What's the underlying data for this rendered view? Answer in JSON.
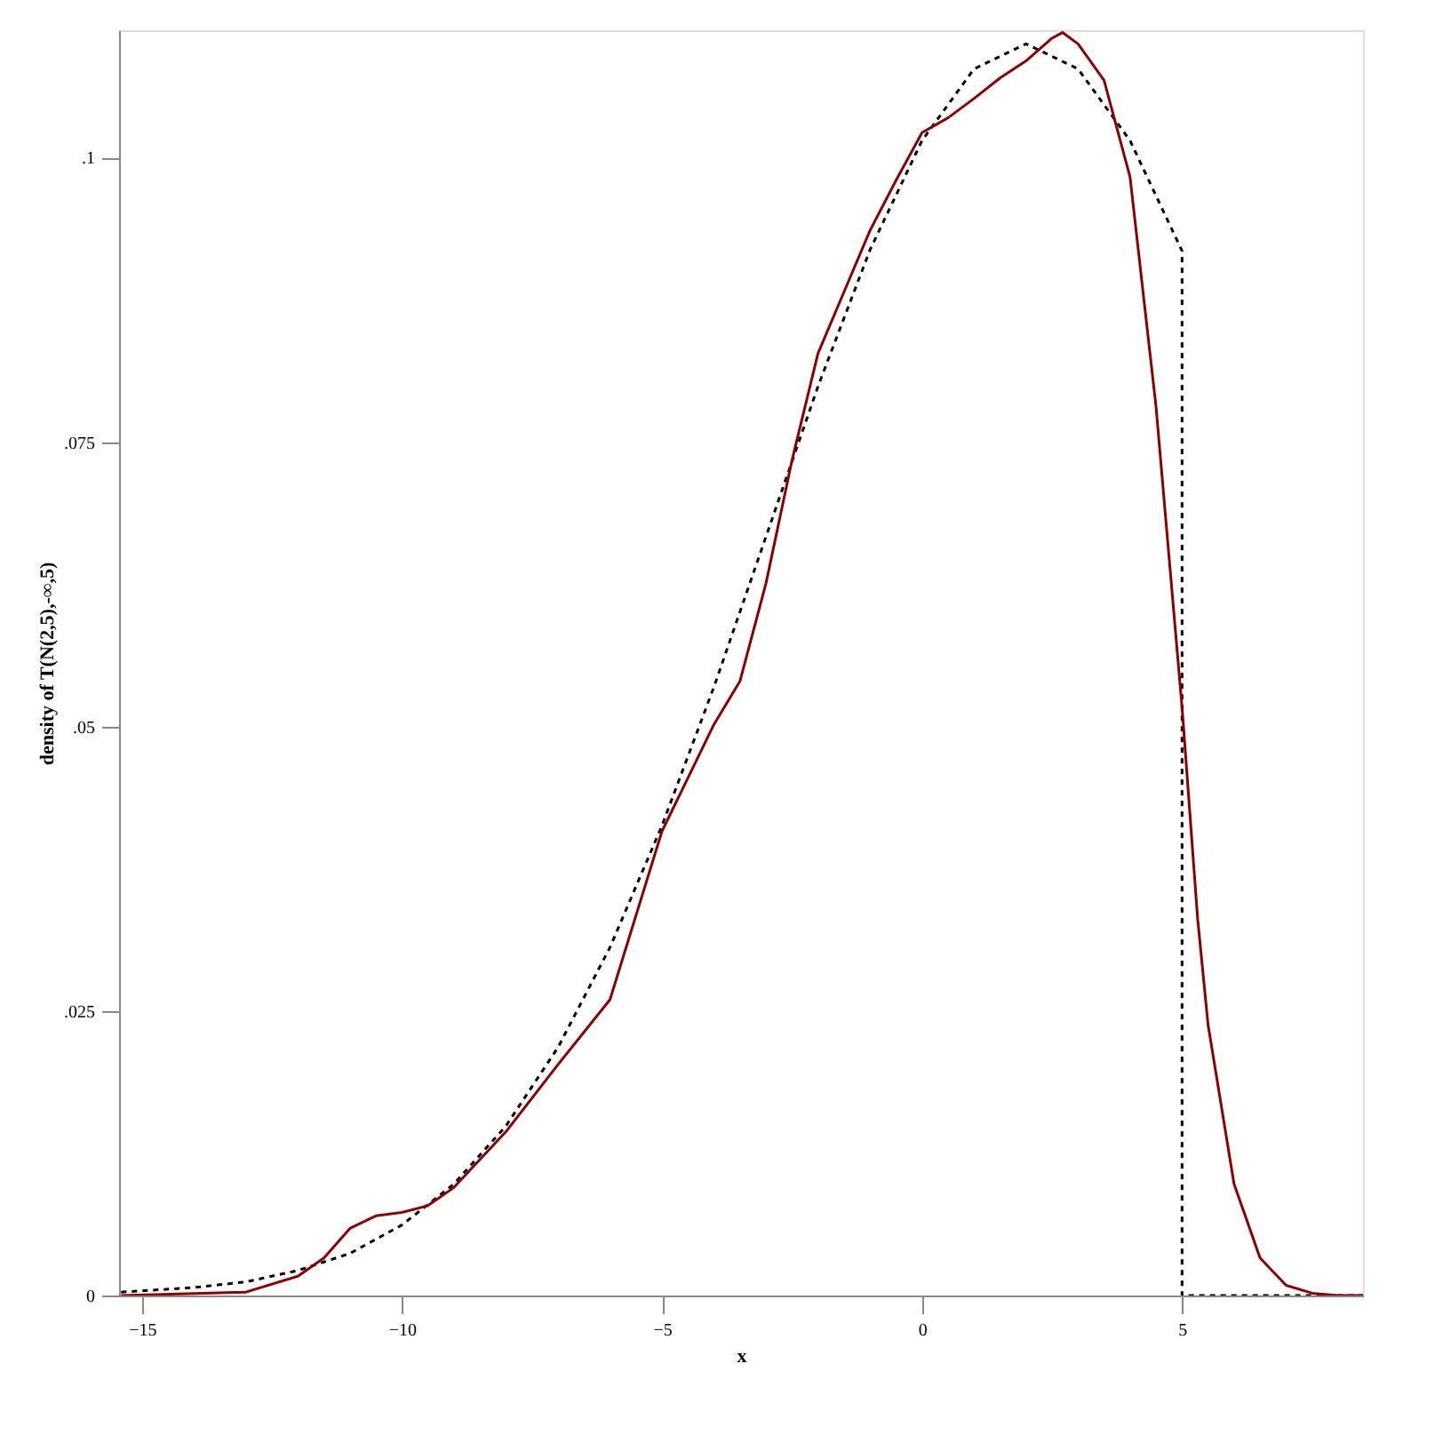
{
  "chart_data": {
    "type": "line",
    "xlabel": "x",
    "ylabel": "density of T(N(2,5),-∞,5)",
    "xlim": [
      -15.44,
      8.48
    ],
    "xticks": [
      -15,
      -10,
      -5,
      0,
      5
    ],
    "ylim": [
      0,
      0.1112
    ],
    "yticks": [
      {
        "value": 0,
        "label": "0"
      },
      {
        "value": 0.025,
        "label": ".025"
      },
      {
        "value": 0.05,
        "label": ".05"
      },
      {
        "value": 0.075,
        "label": ".075"
      },
      {
        "value": 0.1,
        "label": ".1"
      }
    ],
    "grid": false,
    "series": [
      {
        "color": "#000000",
        "line_style": "dashed",
        "x": [
          -15.4,
          -14,
          -13,
          -12,
          -11,
          -10,
          -9,
          -8,
          -7,
          -6,
          -5,
          -4,
          -3,
          -2,
          -1,
          0,
          1,
          2,
          3,
          4,
          5,
          5,
          8.48
        ],
        "values": [
          0.0003,
          0.0007,
          0.0012,
          0.0022,
          0.0037,
          0.0062,
          0.0098,
          0.0149,
          0.0218,
          0.0306,
          0.0413,
          0.0535,
          0.0667,
          0.0799,
          0.0919,
          0.1015,
          0.1078,
          0.11,
          0.1078,
          0.1015,
          0.0918,
          0,
          0
        ]
      },
      {
        "color": "#8b0000",
        "line_style": "solid",
        "x": [
          -15.4,
          -13,
          -12,
          -11.5,
          -11,
          -10.5,
          -10,
          -9.5,
          -9,
          -8,
          -7,
          -6,
          -5,
          -4.5,
          -4,
          -3.5,
          -3,
          -2.5,
          -2,
          -1.5,
          -1,
          -0.5,
          0,
          0.5,
          1,
          1.5,
          2,
          2.5,
          2.7,
          3,
          3.5,
          4,
          4.5,
          5,
          5.3,
          5.5,
          6,
          6.5,
          7,
          7.5,
          8,
          8.48
        ],
        "values": [
          0,
          0.0003,
          0.0017,
          0.0033,
          0.0059,
          0.007,
          0.0073,
          0.0079,
          0.0095,
          0.0144,
          0.0203,
          0.026,
          0.0408,
          0.0455,
          0.0502,
          0.054,
          0.0626,
          0.0734,
          0.0828,
          0.0882,
          0.0936,
          0.098,
          0.1022,
          0.1035,
          0.1052,
          0.107,
          0.1085,
          0.1105,
          0.111,
          0.11,
          0.1068,
          0.0983,
          0.0781,
          0.0517,
          0.0331,
          0.0238,
          0.0098,
          0.0033,
          0.0009,
          0.0002,
          0,
          0
        ]
      }
    ]
  }
}
